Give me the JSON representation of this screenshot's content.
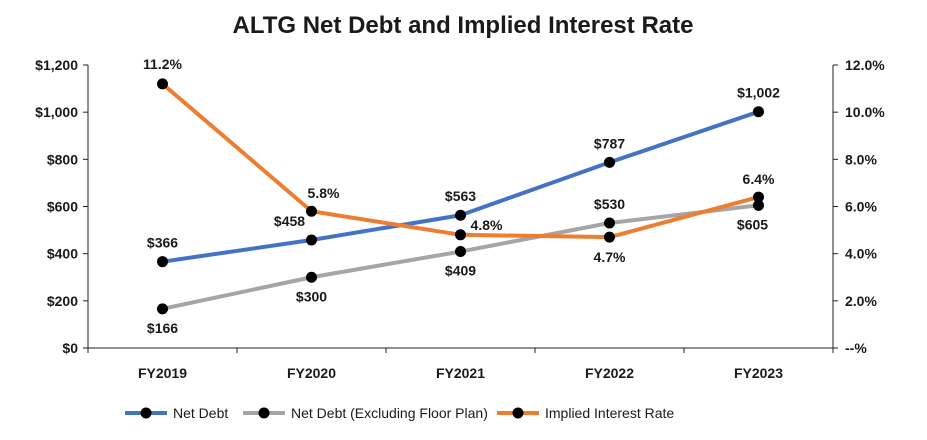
{
  "chart_data": {
    "type": "line",
    "title": "ALTG Net Debt and Implied Interest Rate",
    "categories": [
      "FY2019",
      "FY2020",
      "FY2021",
      "FY2022",
      "FY2023"
    ],
    "y_left": {
      "range": [
        0,
        1200
      ],
      "ticks": [
        0,
        200,
        400,
        600,
        800,
        1000,
        1200
      ],
      "tick_labels": [
        "$0",
        "$200",
        "$400",
        "$600",
        "$800",
        "$1,000",
        "$1,200"
      ]
    },
    "y_right": {
      "range": [
        0,
        12
      ],
      "ticks": [
        0,
        2,
        4,
        6,
        8,
        10,
        12
      ],
      "tick_labels": [
        "--%",
        "2.0%",
        "4.0%",
        "6.0%",
        "8.0%",
        "10.0%",
        "12.0%"
      ]
    },
    "grid": false,
    "legend_position": "bottom",
    "series": [
      {
        "name": "Net Debt",
        "axis": "left",
        "color": "#4472C4",
        "values": [
          366,
          458,
          563,
          787,
          1002
        ],
        "labels": [
          "$366",
          "$458",
          "$563",
          "$787",
          "$1,002"
        ]
      },
      {
        "name": "Net Debt (Excluding Floor Plan)",
        "axis": "left",
        "color": "#A5A5A5",
        "values": [
          166,
          300,
          409,
          530,
          605
        ],
        "labels": [
          "$166",
          "$300",
          "$409",
          "$530",
          "$605"
        ]
      },
      {
        "name": "Implied Interest Rate",
        "axis": "right",
        "color": "#ED7D31",
        "values": [
          11.2,
          5.8,
          4.8,
          4.7,
          6.4
        ],
        "labels": [
          "11.2%",
          "5.8%",
          "4.8%",
          "4.7%",
          "6.4%"
        ]
      }
    ],
    "marker_color": "#000000"
  }
}
